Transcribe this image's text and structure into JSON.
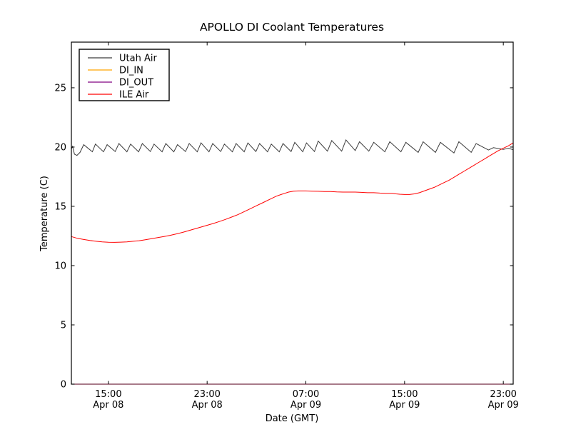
{
  "title": "APOLLO DI Coolant Temperatures",
  "axes": {
    "xlabel": "Date (GMT)",
    "ylabel": "Temperature (C)"
  },
  "legend": {
    "position": "upper-left",
    "items": [
      "Utah Air",
      "DI_IN",
      "DI_OUT",
      "ILE Air"
    ]
  },
  "colors": {
    "utah_air": "#3c3c3c",
    "di_in": "#ffa500",
    "di_out": "#800080",
    "ile_air": "#ff0000",
    "axis": "#000000",
    "background": "#ffffff"
  },
  "chart_data": {
    "type": "line",
    "title": "APOLLO DI Coolant Temperatures",
    "xlabel": "Date (GMT)",
    "ylabel": "Temperature (C)",
    "grid": false,
    "legend_position": "upper left",
    "x_unit": "hours after Apr 08 12:00 GMT",
    "xlim": [
      0,
      35.8
    ],
    "ylim": [
      0,
      28.85
    ],
    "x_ticks": [
      {
        "t": 3,
        "time": "15:00",
        "date": "Apr 08"
      },
      {
        "t": 11,
        "time": "23:00",
        "date": "Apr 08"
      },
      {
        "t": 19,
        "time": "07:00",
        "date": "Apr 09"
      },
      {
        "t": 27,
        "time": "15:00",
        "date": "Apr 09"
      },
      {
        "t": 35,
        "time": "23:00",
        "date": "Apr 09"
      }
    ],
    "y_ticks": [
      {
        "v": 0,
        "label": "0"
      },
      {
        "v": 5,
        "label": "5"
      },
      {
        "v": 10,
        "label": "10"
      },
      {
        "v": 15,
        "label": "15"
      },
      {
        "v": 20,
        "label": "20"
      },
      {
        "v": 25,
        "label": "25"
      }
    ],
    "series": [
      {
        "name": "Utah Air",
        "color": "#3c3c3c",
        "points": [
          [
            0,
            19.85
          ],
          [
            0.1,
            20.05
          ],
          [
            0.25,
            19.4
          ],
          [
            0.45,
            19.3
          ],
          [
            0.7,
            19.55
          ],
          [
            1.0,
            20.2
          ],
          [
            1.7,
            19.6
          ],
          [
            1.95,
            20.25
          ],
          [
            2.6,
            19.6
          ],
          [
            2.9,
            20.2
          ],
          [
            3.55,
            19.62
          ],
          [
            3.85,
            20.3
          ],
          [
            4.5,
            19.6
          ],
          [
            4.8,
            20.25
          ],
          [
            5.45,
            19.6
          ],
          [
            5.75,
            20.3
          ],
          [
            6.4,
            19.62
          ],
          [
            6.7,
            20.25
          ],
          [
            7.35,
            19.6
          ],
          [
            7.65,
            20.3
          ],
          [
            8.3,
            19.6
          ],
          [
            8.6,
            20.2
          ],
          [
            9.25,
            19.62
          ],
          [
            9.55,
            20.3
          ],
          [
            10.2,
            19.6
          ],
          [
            10.5,
            20.35
          ],
          [
            11.15,
            19.6
          ],
          [
            11.45,
            20.3
          ],
          [
            12.1,
            19.62
          ],
          [
            12.4,
            20.25
          ],
          [
            13.05,
            19.6
          ],
          [
            13.35,
            20.3
          ],
          [
            14.0,
            19.6
          ],
          [
            14.3,
            20.35
          ],
          [
            14.95,
            19.62
          ],
          [
            15.25,
            20.3
          ],
          [
            15.9,
            19.6
          ],
          [
            16.2,
            20.25
          ],
          [
            16.85,
            19.6
          ],
          [
            17.15,
            20.3
          ],
          [
            17.8,
            19.62
          ],
          [
            18.1,
            20.4
          ],
          [
            18.75,
            19.6
          ],
          [
            19.05,
            20.35
          ],
          [
            19.7,
            19.62
          ],
          [
            20.0,
            20.5
          ],
          [
            20.75,
            19.65
          ],
          [
            21.1,
            20.55
          ],
          [
            21.9,
            19.65
          ],
          [
            22.25,
            20.6
          ],
          [
            23.0,
            19.7
          ],
          [
            23.35,
            20.45
          ],
          [
            24.1,
            19.65
          ],
          [
            24.5,
            20.4
          ],
          [
            25.4,
            19.6
          ],
          [
            25.8,
            20.45
          ],
          [
            26.7,
            19.6
          ],
          [
            27.1,
            20.4
          ],
          [
            28.1,
            19.55
          ],
          [
            28.5,
            20.45
          ],
          [
            29.5,
            19.55
          ],
          [
            29.9,
            20.4
          ],
          [
            31.0,
            19.5
          ],
          [
            31.4,
            20.45
          ],
          [
            32.4,
            19.55
          ],
          [
            32.8,
            20.3
          ],
          [
            33.8,
            19.75
          ],
          [
            34.2,
            19.95
          ],
          [
            35.0,
            19.8
          ],
          [
            35.4,
            19.9
          ],
          [
            35.8,
            19.78
          ]
        ]
      },
      {
        "name": "DI_IN",
        "color": "#ffa500",
        "flat_at_zero": true,
        "points": [
          [
            0,
            0
          ],
          [
            35.8,
            0
          ]
        ]
      },
      {
        "name": "DI_OUT",
        "color": "#800080",
        "flat_at_zero": true,
        "points": [
          [
            0,
            0
          ],
          [
            35.8,
            0
          ]
        ]
      },
      {
        "name": "ILE Air",
        "color": "#ff0000",
        "points": [
          [
            0,
            12.45
          ],
          [
            0.5,
            12.3
          ],
          [
            1,
            12.2
          ],
          [
            1.5,
            12.12
          ],
          [
            2,
            12.05
          ],
          [
            2.5,
            12.0
          ],
          [
            3,
            11.97
          ],
          [
            3.5,
            11.96
          ],
          [
            4,
            11.98
          ],
          [
            4.5,
            12.0
          ],
          [
            5,
            12.05
          ],
          [
            5.5,
            12.1
          ],
          [
            6,
            12.18
          ],
          [
            6.5,
            12.27
          ],
          [
            7,
            12.36
          ],
          [
            7.5,
            12.45
          ],
          [
            8,
            12.55
          ],
          [
            8.5,
            12.67
          ],
          [
            9,
            12.8
          ],
          [
            9.5,
            12.95
          ],
          [
            10,
            13.1
          ],
          [
            10.5,
            13.25
          ],
          [
            11,
            13.4
          ],
          [
            11.5,
            13.55
          ],
          [
            12,
            13.72
          ],
          [
            12.5,
            13.9
          ],
          [
            13,
            14.1
          ],
          [
            13.5,
            14.3
          ],
          [
            14,
            14.55
          ],
          [
            14.5,
            14.8
          ],
          [
            15,
            15.05
          ],
          [
            15.5,
            15.3
          ],
          [
            16,
            15.55
          ],
          [
            16.3,
            15.7
          ],
          [
            16.6,
            15.85
          ],
          [
            17,
            16.0
          ],
          [
            17.3,
            16.1
          ],
          [
            17.6,
            16.2
          ],
          [
            18,
            16.28
          ],
          [
            18.4,
            16.3
          ],
          [
            19,
            16.3
          ],
          [
            19.5,
            16.28
          ],
          [
            20,
            16.27
          ],
          [
            20.5,
            16.25
          ],
          [
            21,
            16.25
          ],
          [
            21.5,
            16.22
          ],
          [
            22,
            16.2
          ],
          [
            22.5,
            16.2
          ],
          [
            23,
            16.2
          ],
          [
            23.5,
            16.18
          ],
          [
            24,
            16.15
          ],
          [
            24.5,
            16.15
          ],
          [
            25,
            16.12
          ],
          [
            25.5,
            16.1
          ],
          [
            26,
            16.1
          ],
          [
            26.3,
            16.05
          ],
          [
            26.6,
            16.02
          ],
          [
            27,
            16.0
          ],
          [
            27.4,
            16.0
          ],
          [
            27.8,
            16.05
          ],
          [
            28.2,
            16.15
          ],
          [
            28.6,
            16.3
          ],
          [
            29,
            16.45
          ],
          [
            29.4,
            16.6
          ],
          [
            29.8,
            16.8
          ],
          [
            30.2,
            17.0
          ],
          [
            30.6,
            17.2
          ],
          [
            31,
            17.45
          ],
          [
            31.4,
            17.7
          ],
          [
            31.8,
            17.95
          ],
          [
            32.2,
            18.2
          ],
          [
            32.6,
            18.45
          ],
          [
            33,
            18.7
          ],
          [
            33.4,
            18.95
          ],
          [
            33.8,
            19.2
          ],
          [
            34.2,
            19.45
          ],
          [
            34.6,
            19.7
          ],
          [
            35,
            19.9
          ],
          [
            35.4,
            20.1
          ],
          [
            35.8,
            20.35
          ]
        ]
      }
    ]
  }
}
